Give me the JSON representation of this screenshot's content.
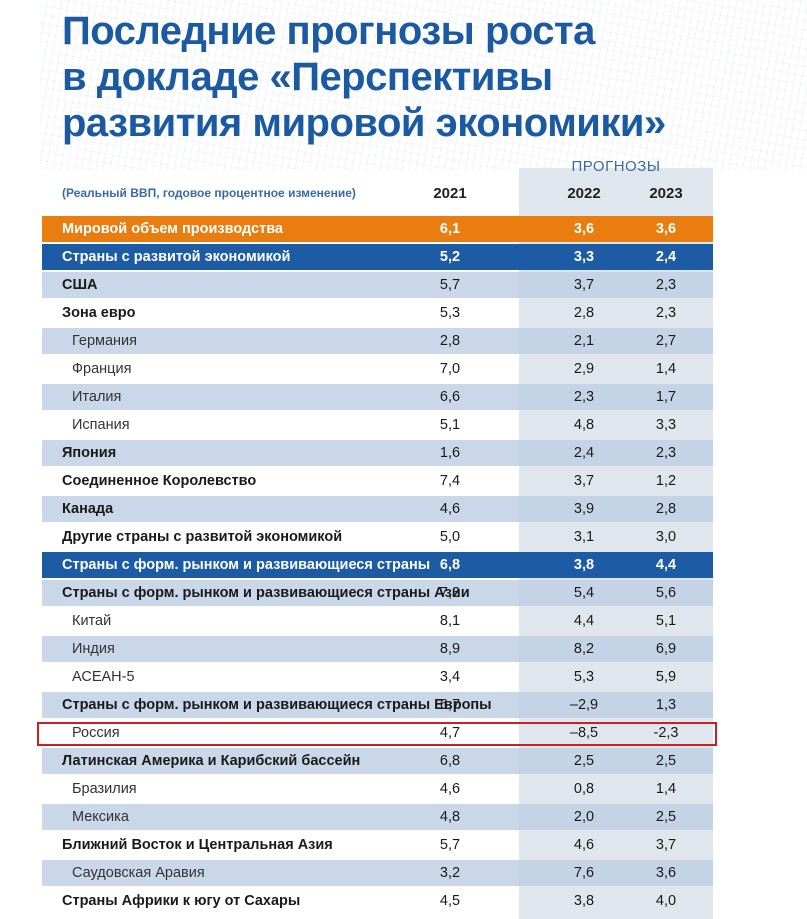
{
  "title": {
    "line1": "Последние прогнозы роста",
    "line2": "в докладе «Перспективы",
    "line3": "развития мировой экономики»"
  },
  "forecast_label": "ПРОГНОЗЫ",
  "subtitle": "(Реальный ВВП, годовое процентное изменение)",
  "years": [
    "2021",
    "2022",
    "2023"
  ],
  "chart_data": {
    "type": "table",
    "columns": [
      "2021",
      "2022",
      "2023"
    ],
    "rows": [
      {
        "label": "Мировой объем производства",
        "values": [
          "6,1",
          "3,6",
          "3,6"
        ],
        "style": "orange"
      },
      {
        "label": "Страны с развитой экономикой",
        "values": [
          "5,2",
          "3,3",
          "2,4"
        ],
        "style": "blue"
      },
      {
        "label": "США",
        "values": [
          "5,7",
          "3,7",
          "2,3"
        ],
        "style": "alt-bold"
      },
      {
        "label": "Зона евро",
        "values": [
          "5,3",
          "2,8",
          "2,3"
        ],
        "style": "plain-bold"
      },
      {
        "label": "Германия",
        "values": [
          "2,8",
          "2,1",
          "2,7"
        ],
        "style": "alt-sub"
      },
      {
        "label": "Франция",
        "values": [
          "7,0",
          "2,9",
          "1,4"
        ],
        "style": "plain-sub"
      },
      {
        "label": "Италия",
        "values": [
          "6,6",
          "2,3",
          "1,7"
        ],
        "style": "alt-sub"
      },
      {
        "label": "Испания",
        "values": [
          "5,1",
          "4,8",
          "3,3"
        ],
        "style": "plain-sub"
      },
      {
        "label": "Япония",
        "values": [
          "1,6",
          "2,4",
          "2,3"
        ],
        "style": "alt-bold"
      },
      {
        "label": "Соединенное Королевство",
        "values": [
          "7,4",
          "3,7",
          "1,2"
        ],
        "style": "plain-bold"
      },
      {
        "label": "Канада",
        "values": [
          "4,6",
          "3,9",
          "2,8"
        ],
        "style": "alt-bold"
      },
      {
        "label": "Другие страны с развитой экономикой",
        "values": [
          "5,0",
          "3,1",
          "3,0"
        ],
        "style": "plain-bold"
      },
      {
        "label": "Страны с форм. рынком и развивающиеся страны",
        "values": [
          "6,8",
          "3,8",
          "4,4"
        ],
        "style": "blue"
      },
      {
        "label": "Страны с форм. рынком и развивающиеся страны Азии",
        "values": [
          "7,3",
          "5,4",
          "5,6"
        ],
        "style": "alt-bold"
      },
      {
        "label": "Китай",
        "values": [
          "8,1",
          "4,4",
          "5,1"
        ],
        "style": "plain-sub"
      },
      {
        "label": "Индия",
        "values": [
          "8,9",
          "8,2",
          "6,9"
        ],
        "style": "alt-sub"
      },
      {
        "label": "АСЕАН-5",
        "values": [
          "3,4",
          "5,3",
          "5,9"
        ],
        "style": "plain-sub"
      },
      {
        "label": "Страны с форм. рынком и развивающиеся страны Европы",
        "values": [
          "6,7",
          "–2,9",
          "1,3"
        ],
        "style": "alt-bold"
      },
      {
        "label": "Россия",
        "values": [
          "4,7",
          "–8,5",
          "-2,3"
        ],
        "style": "plain-sub"
      },
      {
        "label": "Латинская Америка и Карибский бассейн",
        "values": [
          "6,8",
          "2,5",
          "2,5"
        ],
        "style": "alt-bold"
      },
      {
        "label": "Бразилия",
        "values": [
          "4,6",
          "0,8",
          "1,4"
        ],
        "style": "plain-sub"
      },
      {
        "label": "Мексика",
        "values": [
          "4,8",
          "2,0",
          "2,5"
        ],
        "style": "alt-sub"
      },
      {
        "label": "Ближний Восток и Центральная Азия",
        "values": [
          "5,7",
          "4,6",
          "3,7"
        ],
        "style": "plain-bold"
      },
      {
        "label": "Саудовская Аравия",
        "values": [
          "3,2",
          "7,6",
          "3,6"
        ],
        "style": "alt-sub"
      },
      {
        "label": "Страны Африки к югу от Сахары",
        "values": [
          "4,5",
          "3,8",
          "4,0"
        ],
        "style": "plain-bold"
      }
    ],
    "highlighted_row": "Россия",
    "colors": {
      "orange": "#ea7d0f",
      "blue": "#1d5ca4",
      "alt": "#c0d0e4",
      "highlight": "#cc2020",
      "title": "#1b5aa0"
    }
  }
}
